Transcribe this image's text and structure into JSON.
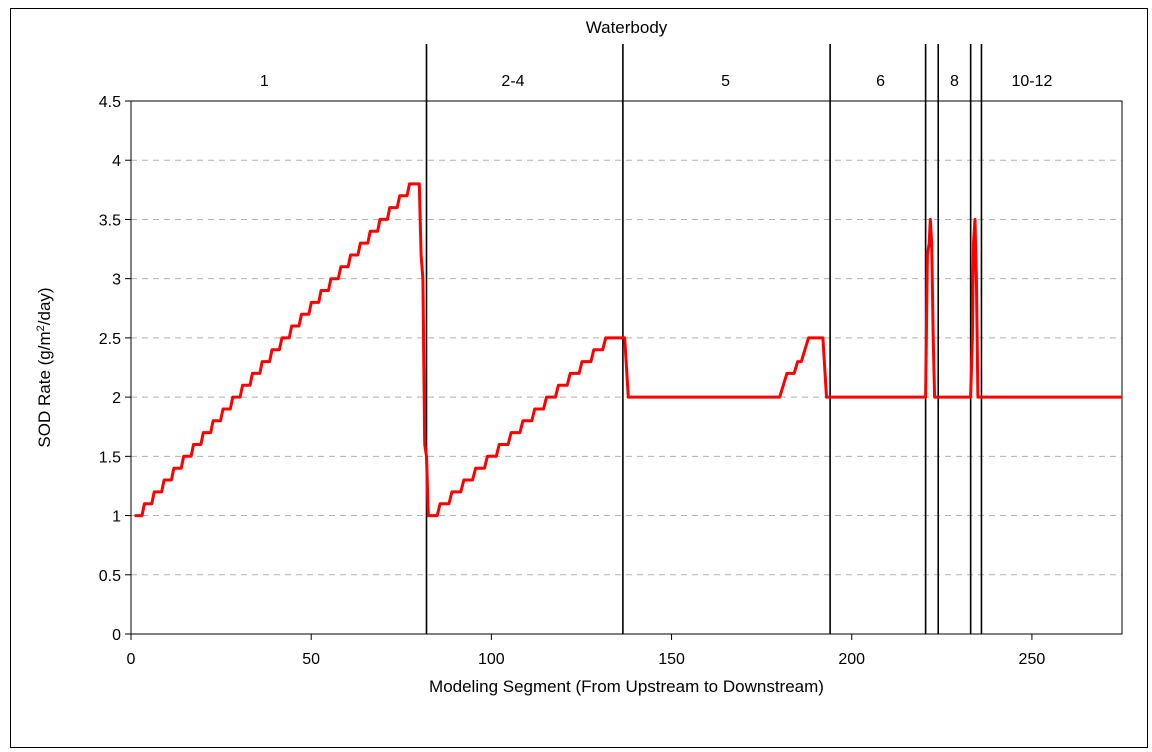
{
  "chart_data": {
    "type": "line",
    "top_axis_title": "Waterbody",
    "xlabel": "Modeling Segment (From Upstream to Downstream)",
    "ylabel": "SOD Rate (g/m2/day)",
    "ylabel_main": "SOD Rate (g/m",
    "ylabel_sup": "2",
    "ylabel_tail": "/day)",
    "xlim": [
      0,
      275
    ],
    "ylim": [
      0,
      4.5
    ],
    "xticks": [
      0,
      50,
      100,
      150,
      200,
      250
    ],
    "yticks": [
      0,
      0.5,
      1,
      1.5,
      2,
      2.5,
      3,
      3.5,
      4,
      4.5
    ],
    "grid": "horizontal dashed",
    "waterbody_boundaries": [
      82,
      136.5,
      194,
      220.5,
      224,
      233,
      236
    ],
    "waterbody_labels": [
      {
        "label": "1",
        "x": 37
      },
      {
        "label": "2-4",
        "x": 106
      },
      {
        "label": "5",
        "x": 165
      },
      {
        "label": "6",
        "x": 208
      },
      {
        "label": "8",
        "x": 228.5
      },
      {
        "label": "10-12",
        "x": 250
      }
    ],
    "series": [
      {
        "color": "#ff0000",
        "ramps": [
          {
            "x_start": 1,
            "x_end": 80,
            "y_start": 1.0,
            "y_end": 3.8,
            "step": 0.1
          },
          {
            "x_start": 82.5,
            "x_end": 135,
            "y_start": 1.0,
            "y_end": 2.5,
            "step": 0.1
          }
        ],
        "points": [
          [
            80,
            3.8
          ],
          [
            80.5,
            3.2
          ],
          [
            81,
            3.0
          ],
          [
            81.5,
            1.6
          ],
          [
            82,
            1.5
          ],
          [
            82.5,
            1.0
          ],
          [
            135,
            2.5
          ],
          [
            137,
            2.5
          ],
          [
            138,
            2.0
          ],
          [
            180,
            2.0
          ],
          [
            182,
            2.2
          ],
          [
            184,
            2.2
          ],
          [
            185,
            2.3
          ],
          [
            186,
            2.3
          ],
          [
            188,
            2.5
          ],
          [
            192,
            2.5
          ],
          [
            193,
            2.0
          ],
          [
            220.5,
            2.0
          ],
          [
            221,
            3.2
          ],
          [
            221.5,
            3.3
          ],
          [
            221.8,
            3.5
          ],
          [
            222.2,
            3.3
          ],
          [
            222.6,
            2.5
          ],
          [
            223,
            2.0
          ],
          [
            233,
            2.0
          ],
          [
            233.5,
            2.5
          ],
          [
            233.8,
            3.3
          ],
          [
            234.2,
            3.5
          ],
          [
            234.6,
            3.0
          ],
          [
            235,
            2.0
          ],
          [
            275,
            2.0
          ]
        ]
      }
    ]
  }
}
